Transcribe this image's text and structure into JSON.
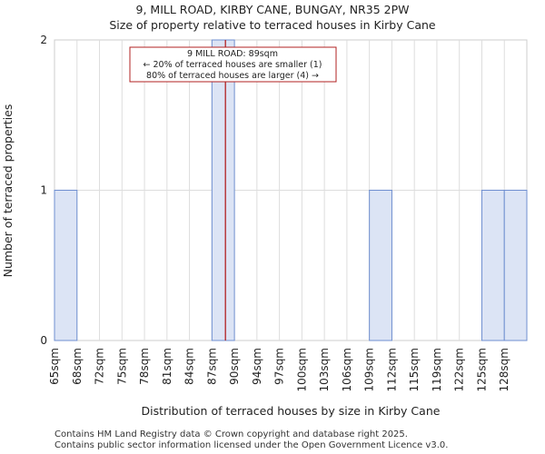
{
  "chart_data": {
    "type": "bar",
    "title": "9, MILL ROAD, KIRBY CANE, BUNGAY, NR35 2PW",
    "subtitle": "Size of property relative to terraced houses in Kirby Cane",
    "xlabel": "Distribution of terraced houses by size in Kirby Cane",
    "ylabel": "Number of terraced properties",
    "categories": [
      "65sqm",
      "68sqm",
      "72sqm",
      "75sqm",
      "78sqm",
      "81sqm",
      "84sqm",
      "87sqm",
      "90sqm",
      "94sqm",
      "97sqm",
      "100sqm",
      "103sqm",
      "106sqm",
      "109sqm",
      "112sqm",
      "115sqm",
      "119sqm",
      "122sqm",
      "125sqm",
      "128sqm"
    ],
    "values": [
      1,
      0,
      0,
      0,
      0,
      0,
      0,
      2,
      0,
      0,
      0,
      0,
      0,
      0,
      1,
      0,
      0,
      0,
      0,
      1,
      1
    ],
    "ylim": [
      0,
      2
    ],
    "yticks": [
      0,
      1,
      2
    ],
    "grid": true,
    "marker": {
      "value_sqm": 89,
      "bin_index": 7,
      "bin_fraction": 0.6,
      "color": "#b22222"
    },
    "annotation": {
      "line1": "9 MILL ROAD: 89sqm",
      "line2": "← 20% of terraced houses are smaller (1)",
      "line3": "80% of terraced houses are larger (4) →"
    },
    "bar_fill": "#dce4f5",
    "bar_edge": "#6f8fd0"
  },
  "footer": {
    "line1": "Contains HM Land Registry data © Crown copyright and database right 2025.",
    "line2": "Contains public sector information licensed under the Open Government Licence v3.0."
  }
}
